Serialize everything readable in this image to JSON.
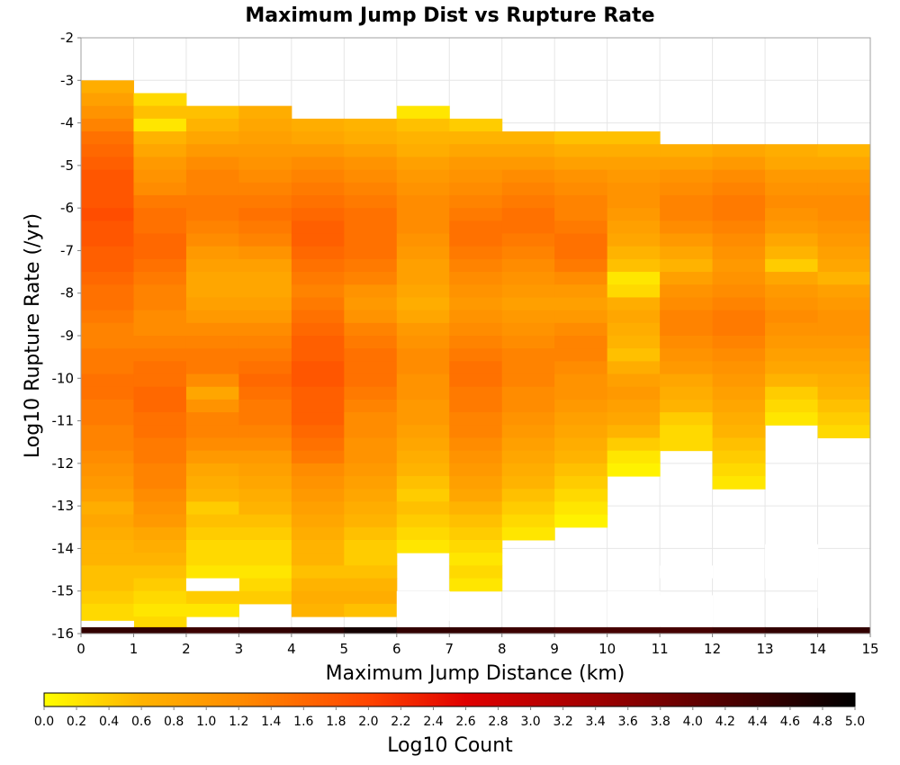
{
  "chart_data": {
    "type": "heatmap",
    "title": "Maximum Jump Dist vs Rupture Rate",
    "xlabel": "Maximum Jump Distance (km)",
    "ylabel": "Log10 Rupture Rate (/yr)",
    "xlim": [
      0,
      15
    ],
    "ylim": [
      -16,
      -2
    ],
    "x_ticks": [
      "0",
      "1",
      "2",
      "3",
      "4",
      "5",
      "6",
      "7",
      "8",
      "9",
      "10",
      "11",
      "12",
      "13",
      "14",
      "15"
    ],
    "y_ticks": [
      "-2",
      "-3",
      "-4",
      "-5",
      "-6",
      "-7",
      "-8",
      "-9",
      "-10",
      "-11",
      "-12",
      "-13",
      "-14",
      "-15",
      "-16"
    ],
    "grid": true,
    "x_bins": [
      0,
      1,
      2,
      3,
      4,
      5,
      6,
      7,
      8,
      9,
      10,
      11,
      12,
      13,
      14
    ],
    "bin_width_x": 1,
    "bin_height_y": 0.3,
    "columns": [
      {
        "x": 0,
        "y_start": -3.0,
        "values": [
          0.7,
          0.9,
          1.1,
          1.3,
          1.5,
          1.6,
          1.7,
          1.8,
          1.8,
          1.8,
          1.9,
          1.8,
          1.8,
          1.7,
          1.7,
          1.6,
          1.5,
          1.5,
          1.4,
          1.3,
          1.3,
          1.4,
          1.4,
          1.5,
          1.5,
          1.4,
          1.4,
          1.3,
          1.3,
          1.2,
          1.1,
          1.0,
          0.9,
          0.7,
          0.8,
          0.7,
          0.6,
          0.6,
          0.5,
          0.5,
          0.4,
          0.3,
          0.3,
          0.0
        ]
      },
      {
        "x": 1,
        "y_start": -3.3,
        "values": [
          0.3,
          0.5,
          0.2,
          0.6,
          0.8,
          1.0,
          1.1,
          1.2,
          1.4,
          1.5,
          1.5,
          1.6,
          1.6,
          1.5,
          1.4,
          1.3,
          1.3,
          1.2,
          1.2,
          1.3,
          1.4,
          1.5,
          1.5,
          1.6,
          1.6,
          1.5,
          1.5,
          1.4,
          1.4,
          1.3,
          1.3,
          1.2,
          1.1,
          1.0,
          0.8,
          0.7,
          0.6,
          0.5,
          0.4,
          0.3,
          0.2,
          0.3
        ]
      },
      {
        "x": 2,
        "y_start": -3.6,
        "values": [
          0.5,
          0.6,
          0.8,
          1.0,
          1.2,
          1.3,
          1.3,
          1.4,
          1.4,
          1.3,
          1.2,
          1.0,
          0.9,
          0.8,
          0.8,
          0.9,
          1.0,
          1.2,
          1.3,
          1.4,
          1.4,
          1.2,
          0.8,
          1.1,
          1.3,
          1.3,
          1.2,
          1.0,
          0.8,
          0.7,
          0.6,
          0.4,
          0.5,
          0.4,
          0.3,
          0.3,
          0.2,
          0.3,
          0.4,
          0.2
        ]
      },
      {
        "x": 3,
        "y_start": -3.6,
        "values": [
          0.7,
          0.8,
          0.9,
          1.0,
          1.1,
          1.2,
          1.3,
          1.4,
          1.5,
          1.4,
          1.3,
          1.1,
          0.9,
          0.8,
          0.8,
          0.9,
          1.0,
          1.2,
          1.3,
          1.4,
          1.5,
          1.6,
          1.5,
          1.4,
          1.4,
          1.3,
          1.2,
          1.0,
          0.9,
          0.8,
          0.7,
          0.6,
          0.5,
          0.4,
          0.3,
          0.3,
          0.2,
          0.3,
          0.4
        ]
      },
      {
        "x": 4,
        "y_start": -3.9,
        "values": [
          0.7,
          0.8,
          1.0,
          1.2,
          1.3,
          1.4,
          1.5,
          1.6,
          1.7,
          1.7,
          1.6,
          1.5,
          1.4,
          1.3,
          1.4,
          1.5,
          1.6,
          1.7,
          1.7,
          1.8,
          1.8,
          1.7,
          1.7,
          1.7,
          1.6,
          1.5,
          1.4,
          1.2,
          1.1,
          1.0,
          0.9,
          0.8,
          0.7,
          0.6,
          0.6,
          0.5,
          0.6,
          0.7,
          0.6
        ]
      },
      {
        "x": 5,
        "y_start": -3.9,
        "values": [
          0.6,
          0.7,
          0.9,
          1.1,
          1.2,
          1.3,
          1.4,
          1.5,
          1.5,
          1.5,
          1.5,
          1.4,
          1.3,
          1.1,
          1.0,
          1.1,
          1.3,
          1.4,
          1.5,
          1.5,
          1.5,
          1.4,
          1.3,
          1.2,
          1.2,
          1.1,
          1.1,
          1.0,
          0.9,
          0.8,
          0.7,
          0.6,
          0.5,
          0.4,
          0.4,
          0.5,
          0.6,
          0.7,
          0.5
        ]
      },
      {
        "x": 6,
        "y_start": -3.6,
        "values": [
          0.2,
          0.5,
          0.6,
          0.7,
          0.9,
          1.0,
          1.1,
          1.2,
          1.2,
          1.2,
          1.1,
          1.0,
          0.9,
          0.9,
          0.8,
          0.7,
          0.8,
          1.0,
          1.1,
          1.2,
          1.2,
          1.1,
          1.1,
          1.0,
          1.0,
          0.9,
          0.8,
          0.7,
          0.6,
          0.5,
          0.4,
          0.5,
          0.4,
          0.3,
          0.2
        ]
      },
      {
        "x": 7,
        "y_start": -3.9,
        "values": [
          0.4,
          0.6,
          0.8,
          1.0,
          1.1,
          1.2,
          1.3,
          1.4,
          1.5,
          1.5,
          1.4,
          1.3,
          1.2,
          1.1,
          1.0,
          1.1,
          1.2,
          1.3,
          1.4,
          1.5,
          1.5,
          1.4,
          1.4,
          1.3,
          1.3,
          1.2,
          1.1,
          1.0,
          0.9,
          0.8,
          0.6,
          0.5,
          0.4,
          0.3,
          0.2,
          0.3,
          0.2
        ]
      },
      {
        "x": 8,
        "y_start": -4.2,
        "values": [
          0.6,
          0.8,
          1.0,
          1.2,
          1.3,
          1.4,
          1.5,
          1.5,
          1.4,
          1.3,
          1.2,
          1.1,
          1.0,
          0.9,
          1.0,
          1.1,
          1.2,
          1.3,
          1.3,
          1.3,
          1.2,
          1.2,
          1.1,
          1.0,
          0.9,
          0.8,
          0.7,
          0.6,
          0.5,
          0.4,
          0.3,
          0.2
        ]
      },
      {
        "x": 9,
        "y_start": -4.2,
        "values": [
          0.5,
          0.7,
          0.9,
          1.1,
          1.2,
          1.3,
          1.3,
          1.4,
          1.5,
          1.5,
          1.4,
          1.2,
          1.0,
          0.9,
          1.0,
          1.2,
          1.3,
          1.3,
          1.2,
          1.1,
          1.1,
          1.0,
          0.9,
          0.8,
          0.7,
          0.6,
          0.5,
          0.4,
          0.3,
          0.2,
          0.1
        ]
      },
      {
        "x": 10,
        "y_start": -4.2,
        "values": [
          0.5,
          0.7,
          0.9,
          1.0,
          1.1,
          1.1,
          1.0,
          0.9,
          0.8,
          0.6,
          0.5,
          0.2,
          0.3,
          0.7,
          0.8,
          0.7,
          0.6,
          0.5,
          0.7,
          0.9,
          1.0,
          0.9,
          0.8,
          0.6,
          0.4,
          0.2,
          0.1
        ]
      },
      {
        "x": 11,
        "y_start": -4.5,
        "values": [
          0.7,
          0.9,
          1.1,
          1.2,
          1.3,
          1.3,
          1.2,
          1.0,
          0.8,
          0.6,
          0.9,
          1.1,
          1.2,
          1.3,
          1.3,
          1.2,
          1.1,
          1.0,
          0.8,
          0.7,
          0.6,
          0.4,
          0.3,
          0.3
        ]
      },
      {
        "x": 12,
        "y_start": -4.5,
        "values": [
          0.8,
          1.0,
          1.2,
          1.3,
          1.4,
          1.4,
          1.3,
          1.2,
          1.1,
          1.0,
          1.1,
          1.2,
          1.3,
          1.4,
          1.4,
          1.3,
          1.2,
          1.1,
          1.0,
          0.9,
          0.8,
          0.7,
          0.6,
          0.5,
          0.4,
          0.3,
          0.2
        ]
      },
      {
        "x": 13,
        "y_start": -4.5,
        "values": [
          0.7,
          0.8,
          1.0,
          1.1,
          1.2,
          1.1,
          1.0,
          0.8,
          0.6,
          0.4,
          0.8,
          1.0,
          1.1,
          1.2,
          1.1,
          1.0,
          0.9,
          0.8,
          0.6,
          0.4,
          0.3,
          0.2
        ]
      },
      {
        "x": 14,
        "y_start": -4.5,
        "values": [
          0.6,
          0.8,
          1.0,
          1.1,
          1.2,
          1.2,
          1.1,
          1.0,
          0.9,
          0.8,
          0.6,
          0.9,
          1.0,
          1.1,
          1.1,
          1.0,
          0.9,
          0.8,
          0.7,
          0.6,
          0.5,
          0.4,
          0.3
        ]
      }
    ],
    "blank_cells": [
      {
        "x": 8,
        "y_top": -15.85,
        "y_bottom": -16.0
      },
      {
        "x": 10,
        "y_top": -15.0,
        "y_bottom": -16.0
      },
      {
        "x": 11,
        "y_top": -14.4,
        "y_bottom": -14.7
      },
      {
        "x": 11,
        "y_top": -15.1,
        "y_bottom": -16.0
      },
      {
        "x": 13,
        "y_top": -13.9,
        "y_bottom": -14.7
      },
      {
        "x": 14,
        "y_top": -14.7,
        "y_bottom": -15.4
      },
      {
        "x": 2,
        "y_top": -14.7,
        "y_bottom": -15.0
      },
      {
        "x": 6,
        "y_top": -15.0,
        "y_bottom": -15.7
      },
      {
        "x": 0,
        "y_top": -15.7,
        "y_bottom": -16.0
      }
    ],
    "bottom_row": {
      "y_top": -15.85,
      "y_bottom": -16.0,
      "values": [
        4.5,
        4.5,
        4.4,
        4.5,
        4.6,
        4.8,
        4.5,
        4.5,
        4.4,
        4.3,
        4.3,
        4.3,
        4.4,
        4.5,
        4.5
      ]
    },
    "colorbar": {
      "label": "Log10 Count",
      "range": [
        0,
        5
      ],
      "ticks": [
        "0.0",
        "0.2",
        "0.4",
        "0.6",
        "0.8",
        "1.0",
        "1.2",
        "1.4",
        "1.6",
        "1.8",
        "2.0",
        "2.2",
        "2.4",
        "2.6",
        "2.8",
        "3.0",
        "3.2",
        "3.4",
        "3.6",
        "3.8",
        "4.0",
        "4.2",
        "4.4",
        "4.6",
        "4.8",
        "5.0"
      ],
      "stops": [
        {
          "v": 0.0,
          "color": "#ffff00"
        },
        {
          "v": 0.6,
          "color": "#ffb300"
        },
        {
          "v": 1.2,
          "color": "#ff8c00"
        },
        {
          "v": 2.0,
          "color": "#ff4400"
        },
        {
          "v": 2.6,
          "color": "#e00000"
        },
        {
          "v": 3.4,
          "color": "#a00000"
        },
        {
          "v": 4.2,
          "color": "#500000"
        },
        {
          "v": 5.0,
          "color": "#000000"
        }
      ]
    }
  }
}
